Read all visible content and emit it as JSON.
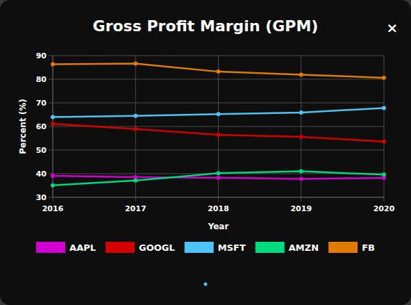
{
  "close": "×",
  "chart_data": {
    "type": "line",
    "title": "Gross Profit Margin (GPM)",
    "x_label": "Year",
    "y_label": "Percent (%)",
    "categories": [
      "2016",
      "2017",
      "2018",
      "2019",
      "2020"
    ],
    "series": [
      {
        "name": "AAPL",
        "color": "#d100d1",
        "values": [
          39.1,
          38.5,
          38.3,
          37.8,
          38.2
        ]
      },
      {
        "name": "GOOGL",
        "color": "#d40000",
        "values": [
          61.1,
          58.9,
          56.5,
          55.6,
          53.6
        ]
      },
      {
        "name": "MSFT",
        "color": "#4fc3f7",
        "values": [
          64.0,
          64.5,
          65.2,
          65.9,
          67.8
        ]
      },
      {
        "name": "AMZN",
        "color": "#00d97e",
        "values": [
          35.1,
          37.1,
          40.2,
          41.0,
          39.6
        ]
      },
      {
        "name": "FB",
        "color": "#e07b00",
        "values": [
          86.3,
          86.6,
          83.2,
          81.9,
          80.6
        ]
      }
    ],
    "ylim": [
      30,
      90
    ],
    "yticks": [
      30,
      40,
      50,
      60,
      70,
      80,
      90
    ],
    "grid": true,
    "legend": "bottom",
    "marker": "circle"
  }
}
